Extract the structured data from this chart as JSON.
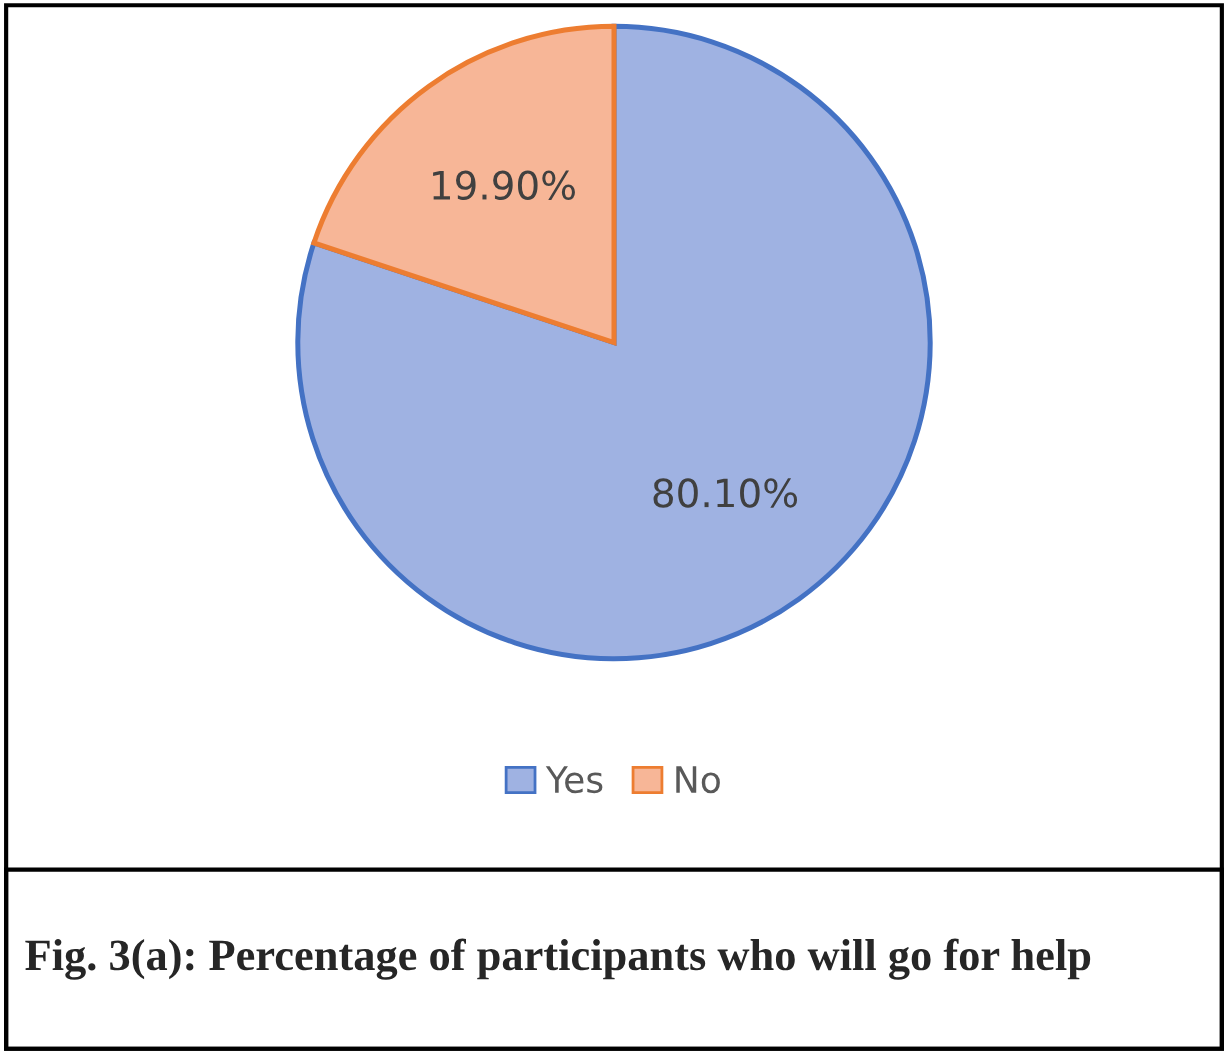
{
  "chart_data": {
    "type": "pie",
    "title": "Fig. 3(a): Percentage of participants who will go for help",
    "categories": [
      "Yes",
      "No"
    ],
    "values": [
      80.1,
      19.9
    ],
    "colors": [
      "#9fb2e2",
      "#f7b697"
    ],
    "value_labels": [
      "80.10%",
      "19.90%"
    ],
    "legend": "bottom"
  }
}
